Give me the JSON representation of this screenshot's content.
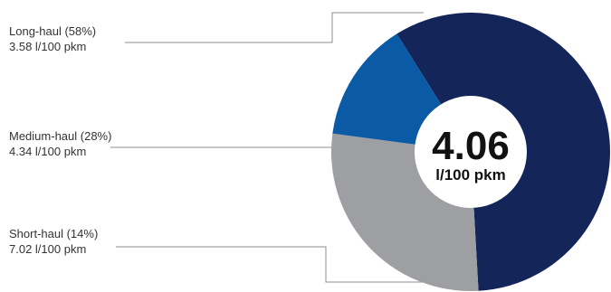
{
  "chart_data": {
    "type": "pie",
    "title": "",
    "center": {
      "value": "4.06",
      "unit": "l/100 pkm"
    },
    "slices": [
      {
        "label": "Long-haul (58%)",
        "detail": "3.58 l/100 pkm",
        "value": 58,
        "color": "#14255a"
      },
      {
        "label": "Medium-haul (28%)",
        "detail": "4.34 l/100 pkm",
        "value": 28,
        "color": "#9d9fa2"
      },
      {
        "label": "Short-haul (14%)",
        "detail": "7.02 l/100 pkm",
        "value": 14,
        "color": "#0a5aa6"
      }
    ],
    "legend_placement": "left"
  }
}
